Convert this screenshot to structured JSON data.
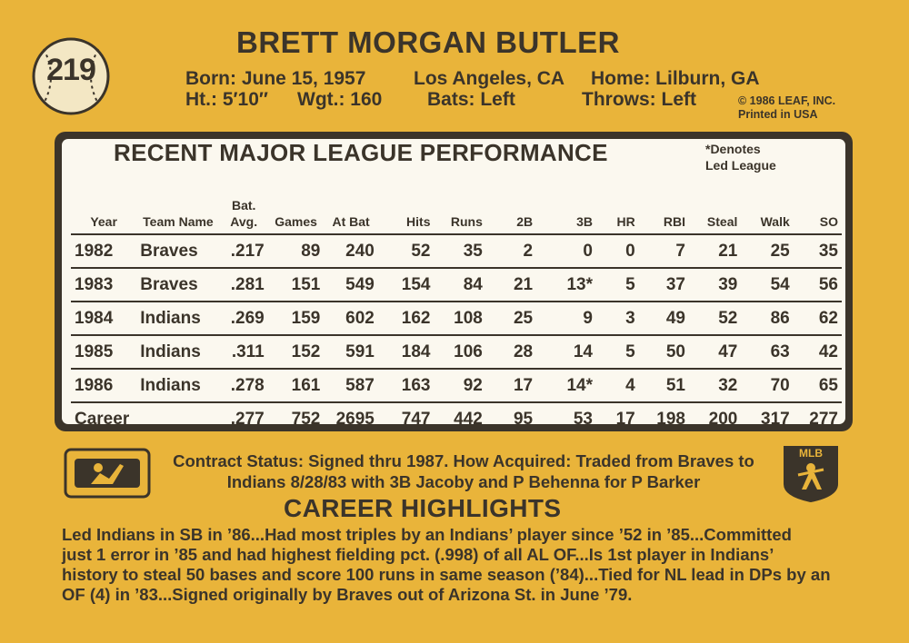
{
  "card_number": "219",
  "player_name": "BRETT MORGAN BUTLER",
  "bio": {
    "line1": "Born: June 15, 1957",
    "birthplace": "Los Angeles, CA",
    "home": "Home: Lilburn, GA",
    "height": "Ht.: 5′10″",
    "weight": "Wgt.: 160",
    "bats": "Bats: Left",
    "throws": "Throws: Left"
  },
  "copyright": "© 1986 LEAF, INC.",
  "printed": "Printed in USA",
  "performance": {
    "title": "RECENT MAJOR LEAGUE PERFORMANCE",
    "denote_line1": "*Denotes",
    "denote_line2": "Led League",
    "headers": [
      "Year",
      "Team Name",
      "Bat. Avg.",
      "Games",
      "At Bat",
      "Hits",
      "Runs",
      "2B",
      "3B",
      "HR",
      "RBI",
      "Steal",
      "Walk",
      "SO"
    ],
    "rows": [
      [
        "1982",
        "Braves",
        ".217",
        "89",
        "240",
        "52",
        "35",
        "2",
        "0",
        "0",
        "7",
        "21",
        "25",
        "35"
      ],
      [
        "1983",
        "Braves",
        ".281",
        "151",
        "549",
        "154",
        "84",
        "21",
        "13*",
        "5",
        "37",
        "39",
        "54",
        "56"
      ],
      [
        "1984",
        "Indians",
        ".269",
        "159",
        "602",
        "162",
        "108",
        "25",
        "9",
        "3",
        "49",
        "52",
        "86",
        "62"
      ],
      [
        "1985",
        "Indians",
        ".311",
        "152",
        "591",
        "184",
        "106",
        "28",
        "14",
        "5",
        "50",
        "47",
        "63",
        "42"
      ],
      [
        "1986",
        "Indians",
        ".278",
        "161",
        "587",
        "163",
        "92",
        "17",
        "14*",
        "4",
        "51",
        "32",
        "70",
        "65"
      ],
      [
        "Career",
        "",
        ".277",
        "752",
        "2695",
        "747",
        "442",
        "95",
        "53",
        "17",
        "198",
        "200",
        "317",
        "277"
      ]
    ]
  },
  "contract_text": "Contract Status: Signed thru 1987. How Acquired: Traded from Braves to Indians 8/28/83 with 3B Jacoby and P Behenna for P Barker",
  "highlights_title": "CAREER HIGHLIGHTS",
  "highlights_text": "Led Indians in SB in ’86...Had most triples by an Indians’ player since ’52 in ’85...Committed\njust 1 error in ’85 and had highest fielding pct. (.998) of all AL OF...Is 1st player in Indians’\nhistory to steal 50 bases and score 100 runs in same season (’84)...Tied for NL lead in DPs by an\nOF (4) in ’83...Signed originally by Braves out of Arizona St. in June ’79.",
  "logos": {
    "mlb_left": "mlb-licensed-logo",
    "mlbpa_right": "mlb-players-logo",
    "mlbpa_text": "MLB",
    "colors": {
      "ink": "#3b342a",
      "card": "#e9b43a",
      "panel": "#fbf8ef"
    }
  }
}
